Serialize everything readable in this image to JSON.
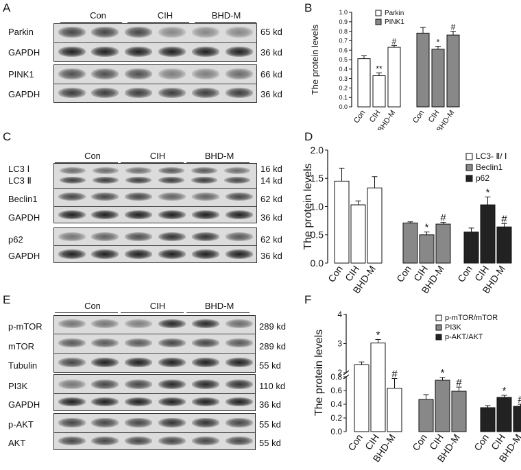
{
  "panels": {
    "A": "A",
    "B": "B",
    "C": "C",
    "D": "D",
    "E": "E",
    "F": "F"
  },
  "groups": [
    "Con",
    "CIH",
    "BHD-M"
  ],
  "blots": {
    "A": [
      {
        "label": "Parkin",
        "kd": "65 kd"
      },
      {
        "label": "GAPDH",
        "kd": "36 kd"
      },
      {
        "label": "PINK1",
        "kd": "66 kd"
      },
      {
        "label": "GAPDH",
        "kd": "36 kd"
      }
    ],
    "C": [
      {
        "label": "LC3 Ⅰ",
        "label2": "LC3 Ⅱ",
        "kd": "16 kd",
        "kd2": "14 kd"
      },
      {
        "label": "Beclin1",
        "kd": "62 kd"
      },
      {
        "label": "GAPDH",
        "kd": "36 kd"
      },
      {
        "label": "p62",
        "kd": "62 kd"
      },
      {
        "label": "GAPDH",
        "kd": "36 kd"
      }
    ],
    "E": [
      {
        "label": "p-mTOR",
        "kd": "289 kd"
      },
      {
        "label": "mTOR",
        "kd": "289 kd"
      },
      {
        "label": "Tubulin",
        "kd": "55 kd"
      },
      {
        "label": "PI3K",
        "kd": "110 kd"
      },
      {
        "label": "GAPDH",
        "kd": "36 kd"
      },
      {
        "label": "p-AKT",
        "kd": "55 kd"
      },
      {
        "label": "AKT",
        "kd": "55 kd"
      }
    ]
  },
  "chart_data": [
    {
      "panel": "B",
      "type": "bar",
      "ylabel": "The protein levels",
      "ylim": [
        0,
        1.0
      ],
      "yticks": [
        "0.0",
        "0.1",
        "0.2",
        "0.3",
        "0.4",
        "0.5",
        "0.6",
        "0.7",
        "0.8",
        "0.9",
        "1.0"
      ],
      "categories": [
        "Con",
        "CIH",
        "BHD-M"
      ],
      "legend_position": "top-right",
      "series": [
        {
          "name": "Parkin",
          "color": "#ffffff",
          "values": [
            0.51,
            0.33,
            0.63
          ],
          "errors": [
            0.03,
            0.03,
            0.02
          ],
          "marks": [
            "",
            "**",
            "#"
          ]
        },
        {
          "name": "PINK1",
          "color": "#888888",
          "values": [
            0.78,
            0.61,
            0.76
          ],
          "errors": [
            0.06,
            0.03,
            0.04
          ],
          "marks": [
            "",
            "*",
            "#"
          ]
        }
      ]
    },
    {
      "panel": "D",
      "type": "bar",
      "ylabel": "The protein levels",
      "ylim": [
        0,
        2.0
      ],
      "yticks": [
        "0.0",
        "0.5",
        "1.0",
        "1.5",
        "2.0"
      ],
      "categories": [
        "Con",
        "CIH",
        "BHD-M"
      ],
      "legend_position": "top-right",
      "series": [
        {
          "name": "LC3- Ⅱ/ Ⅰ",
          "color": "#ffffff",
          "values": [
            1.45,
            1.03,
            1.33
          ],
          "errors": [
            0.23,
            0.07,
            0.2
          ],
          "marks": [
            "",
            "",
            ""
          ]
        },
        {
          "name": "Beclin1",
          "color": "#888888",
          "values": [
            0.71,
            0.5,
            0.69
          ],
          "errors": [
            0.02,
            0.05,
            0.03
          ],
          "marks": [
            "",
            "*",
            "#"
          ]
        },
        {
          "name": "p62",
          "color": "#222222",
          "values": [
            0.55,
            1.03,
            0.64
          ],
          "errors": [
            0.07,
            0.14,
            0.06
          ],
          "marks": [
            "",
            "*",
            "#"
          ]
        }
      ]
    },
    {
      "panel": "F",
      "type": "bar",
      "ylabel": "The protein levels",
      "yticks": [
        "0.0",
        "0.2",
        "0.4",
        "0.6",
        "0.8",
        "2",
        "3",
        "4"
      ],
      "axis_break": true,
      "categories": [
        "Con",
        "CIH",
        "BHD-M"
      ],
      "legend_position": "top-right",
      "series": [
        {
          "name": "p-mTOR/mTOR",
          "color": "#ffffff",
          "values": [
            2.27,
            3.02,
            1.47
          ],
          "errors": [
            0.1,
            0.12,
            0.33
          ],
          "marks": [
            "",
            "*",
            "#"
          ]
        },
        {
          "name": "PI3K",
          "color": "#888888",
          "values": [
            0.47,
            0.75,
            0.59
          ],
          "errors": [
            0.07,
            0.04,
            0.06
          ],
          "marks": [
            "",
            "*",
            "#"
          ]
        },
        {
          "name": "p-AKT/AKT",
          "color": "#222222",
          "values": [
            0.35,
            0.5,
            0.37
          ],
          "errors": [
            0.03,
            0.03,
            0.03
          ],
          "marks": [
            "",
            "*",
            "#"
          ]
        }
      ]
    }
  ]
}
